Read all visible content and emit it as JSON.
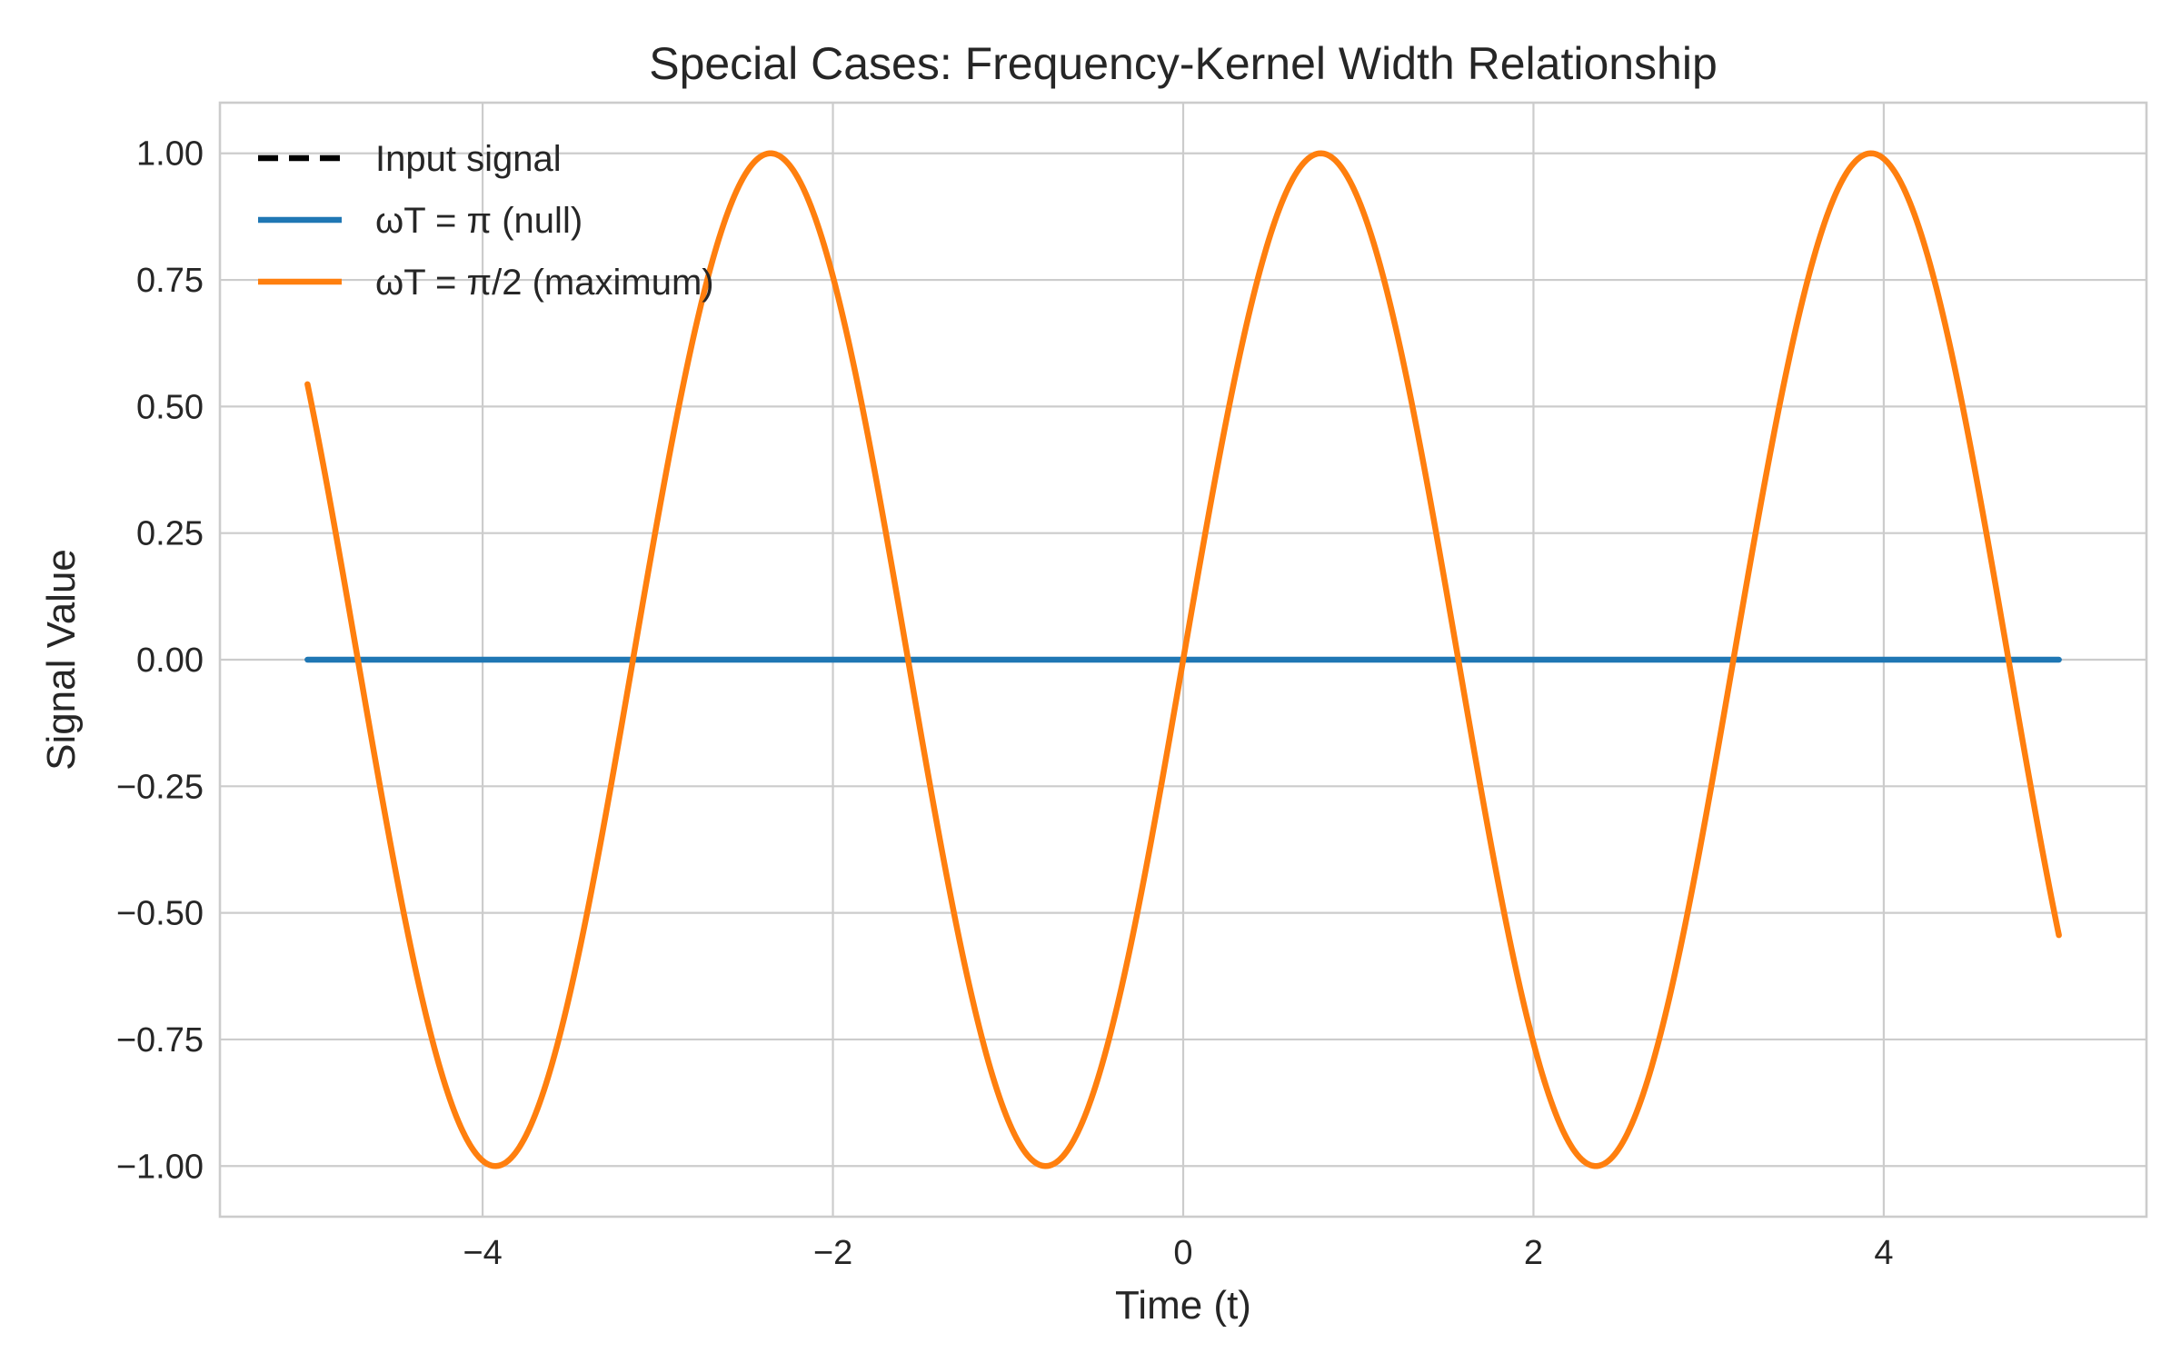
{
  "chart_data": {
    "type": "line",
    "title": "Special Cases: Frequency-Kernel Width Relationship",
    "xlabel": "Time (t)",
    "ylabel": "Signal Value",
    "xlim": [
      -5.5,
      5.5
    ],
    "ylim": [
      -1.1,
      1.1
    ],
    "x_ticks": [
      -4,
      -2,
      0,
      2,
      4
    ],
    "x_tick_labels": [
      "−4",
      "−2",
      "0",
      "2",
      "4"
    ],
    "y_ticks": [
      1.0,
      0.75,
      0.5,
      0.25,
      0.0,
      -0.25,
      -0.5,
      -0.75,
      -1.0
    ],
    "y_tick_labels": [
      "1.00",
      "0.75",
      "0.50",
      "0.25",
      "0.00",
      "−0.25",
      "−0.50",
      "−0.75",
      "−1.00"
    ],
    "grid": true,
    "legend_position": "top-left",
    "x_range": [
      -5,
      5
    ],
    "series": [
      {
        "name": "Input signal",
        "color": "#000000",
        "dash": "dashed",
        "formula": "sin(2t)",
        "visible_in_plot": false
      },
      {
        "name": "ωT = π (null)",
        "color": "#1f77b4",
        "dash": "solid",
        "formula": "0"
      },
      {
        "name": "ωT = π/2 (maximum)",
        "color": "#ff7f0e",
        "dash": "solid",
        "formula": "sin(2t)"
      }
    ]
  }
}
